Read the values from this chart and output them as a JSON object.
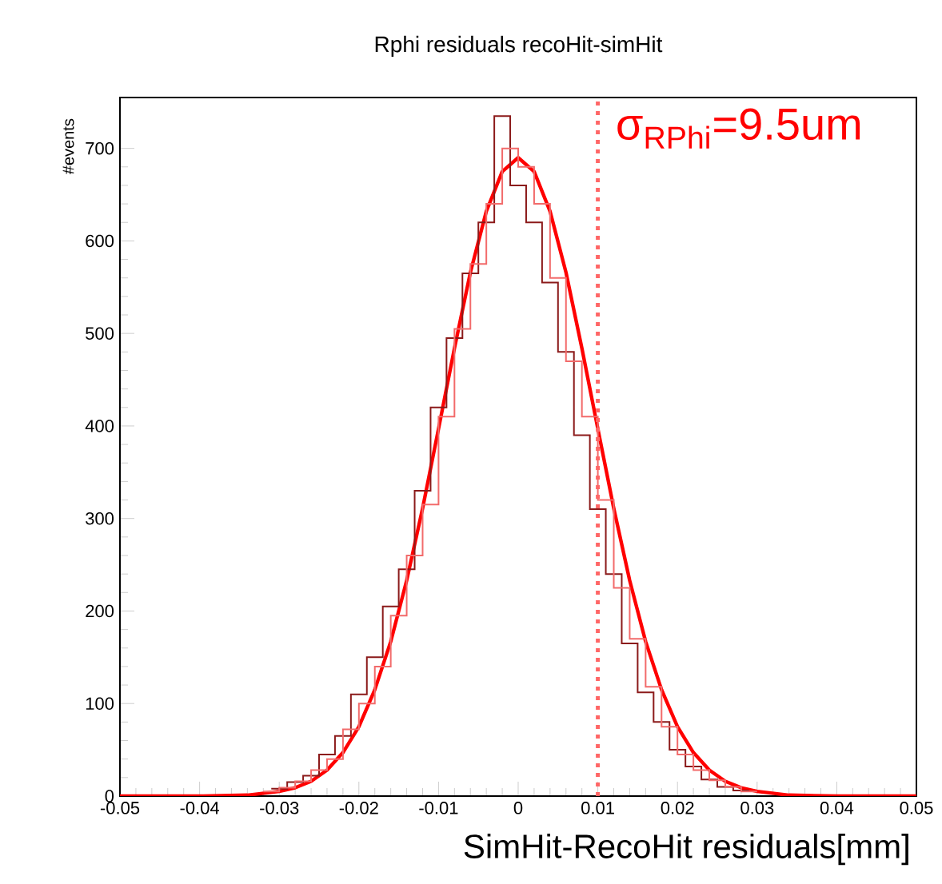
{
  "chart_data": {
    "type": "step",
    "title": "Rphi residuals recoHit-simHit",
    "xlabel": "SimHit-RecoHit residuals[mm]",
    "ylabel": "#events",
    "series": [
      {
        "type": "line",
        "color": "#ff0000",
        "x": [
          -0.05,
          -0.04,
          -0.034,
          -0.03,
          -0.028,
          -0.026,
          -0.024,
          -0.022,
          -0.02,
          -0.018,
          -0.016,
          -0.014,
          -0.012,
          -0.01,
          -0.008,
          -0.006,
          -0.004,
          -0.002,
          0,
          0.002,
          0.004,
          0.006,
          0.008,
          0.01,
          0.012,
          0.014,
          0.016,
          0.018,
          0.02,
          0.022,
          0.024,
          0.026,
          0.028,
          0.03,
          0.034,
          0.04,
          0.05
        ],
        "values": [
          0,
          0,
          1,
          5,
          9,
          16,
          28,
          47,
          75,
          115,
          167,
          233,
          311,
          397,
          484,
          566,
          632,
          675,
          690,
          675,
          632,
          566,
          484,
          397,
          311,
          233,
          167,
          115,
          75,
          47,
          28,
          16,
          9,
          5,
          1,
          0,
          0
        ]
      },
      {
        "color": "#8b1a1a",
        "x": [
          -0.031,
          -0.029,
          -0.027,
          -0.025,
          -0.023,
          -0.021,
          -0.019,
          -0.017,
          -0.015,
          -0.013,
          -0.011,
          -0.009,
          -0.007,
          -0.005,
          -0.003,
          -0.001,
          0.001,
          0.003,
          0.005,
          0.007,
          0.009,
          0.011,
          0.013,
          0.015,
          0.017,
          0.019,
          0.021,
          0.023,
          0.025,
          0.027,
          0.029
        ],
        "values": [
          8,
          15,
          22,
          45,
          65,
          110,
          150,
          205,
          245,
          330,
          420,
          495,
          565,
          620,
          735,
          660,
          620,
          555,
          480,
          390,
          310,
          240,
          165,
          112,
          80,
          50,
          32,
          18,
          10,
          6,
          6
        ]
      },
      {
        "color": "#f26b6b",
        "x": [
          -0.032,
          -0.03,
          -0.028,
          -0.026,
          -0.024,
          -0.022,
          -0.02,
          -0.018,
          -0.016,
          -0.014,
          -0.012,
          -0.01,
          -0.008,
          -0.006,
          -0.004,
          -0.002,
          0,
          0.002,
          0.004,
          0.006,
          0.008,
          0.01,
          0.012,
          0.014,
          0.016,
          0.018,
          0.02,
          0.022,
          0.024,
          0.026,
          0.028,
          0.03
        ],
        "values": [
          5,
          9,
          16,
          28,
          40,
          72,
          100,
          140,
          195,
          260,
          315,
          410,
          505,
          575,
          640,
          700,
          680,
          640,
          560,
          470,
          410,
          320,
          225,
          170,
          118,
          75,
          45,
          28,
          17,
          10,
          5,
          5
        ]
      }
    ],
    "xlim": [
      -0.05,
      0.05
    ],
    "ylim": [
      0,
      755
    ],
    "xticks": [
      -0.05,
      -0.04,
      -0.03,
      -0.02,
      -0.01,
      0,
      0.01,
      0.02,
      0.03,
      0.04,
      0.05
    ],
    "yticks": [
      0,
      100,
      200,
      300,
      400,
      500,
      600,
      700
    ],
    "ref_lines": [
      {
        "axis": "x",
        "value": 0.01,
        "color": "#ff6666",
        "line_style": "dotted"
      }
    ],
    "annotations": [
      "σ$_{RPhi}$=9.5um"
    ],
    "grid": false
  }
}
